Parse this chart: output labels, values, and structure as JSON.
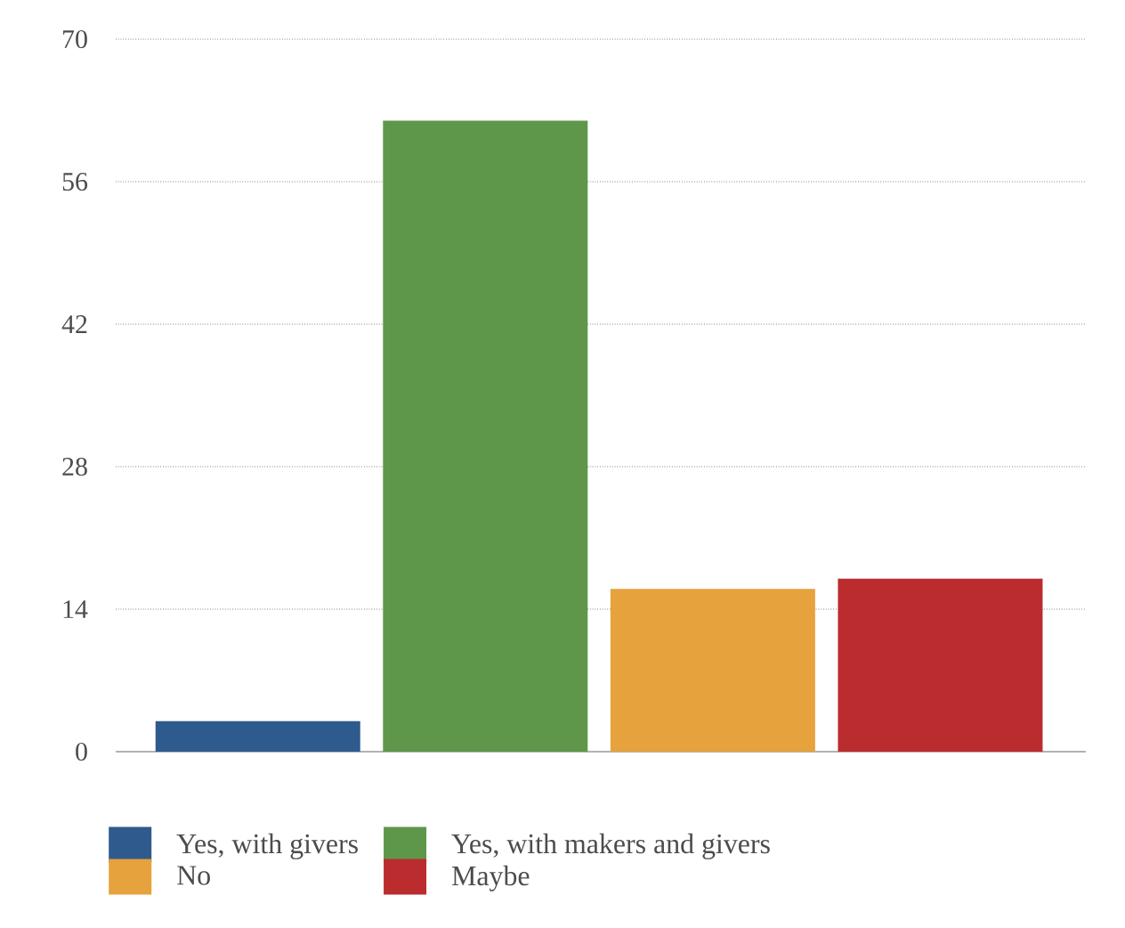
{
  "chart_data": {
    "type": "bar",
    "categories": [
      null,
      null,
      null,
      null
    ],
    "series": [
      {
        "name": "Yes, with givers",
        "color": "#2e5a8e",
        "values": [
          3,
          null,
          null,
          null
        ]
      },
      {
        "name": "Yes, with makers and givers",
        "color": "#5e9749",
        "values": [
          null,
          62,
          null,
          null
        ]
      },
      {
        "name": "No",
        "color": "#e6a23c",
        "values": [
          null,
          null,
          16,
          null
        ]
      },
      {
        "name": "Maybe",
        "color": "#bb2c2f",
        "values": [
          null,
          null,
          null,
          17
        ]
      }
    ],
    "ylim": [
      0,
      70
    ],
    "yticks": [
      0,
      14,
      28,
      42,
      56,
      70
    ],
    "grid": "y",
    "legend": "bottom"
  }
}
